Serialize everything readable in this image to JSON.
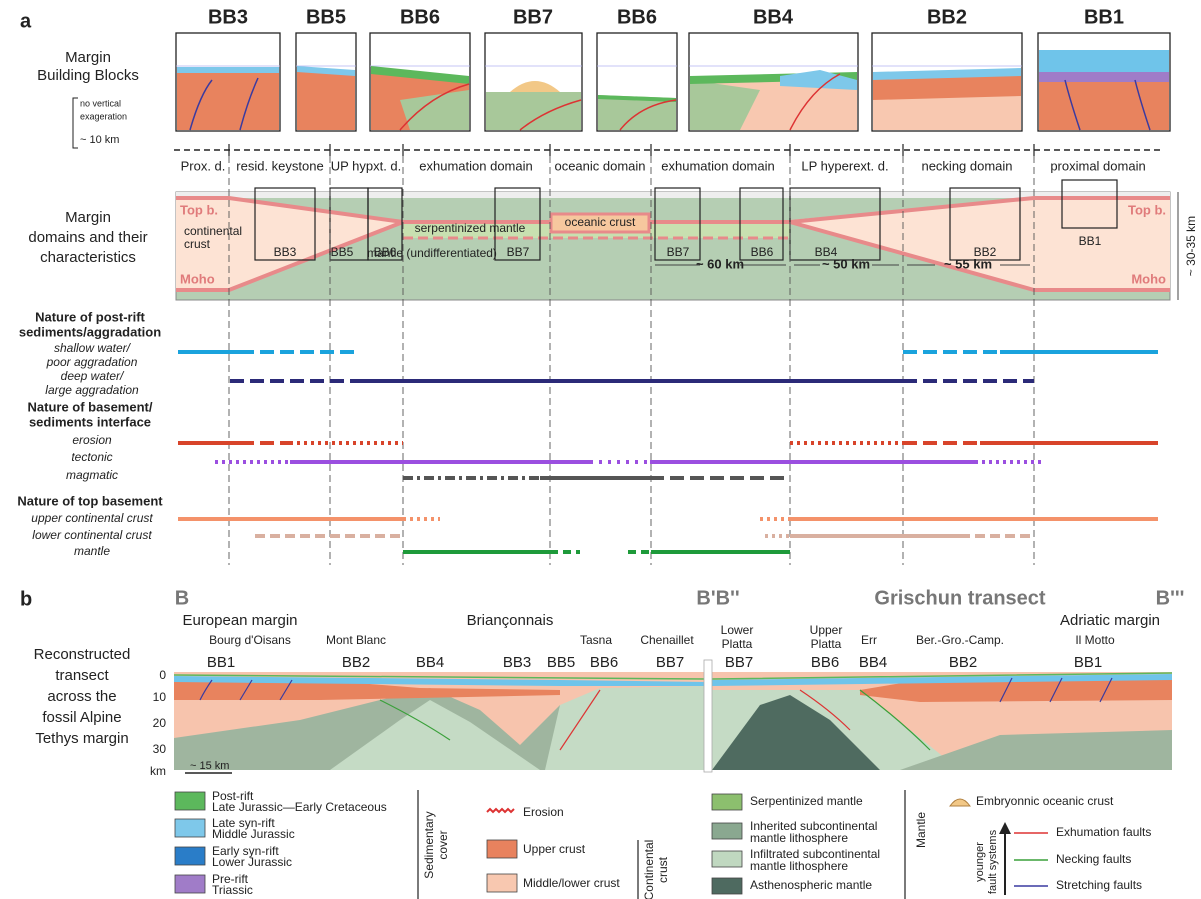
{
  "panel_a": {
    "label": "a",
    "blocks": [
      "BB3",
      "BB5",
      "BB6",
      "BB7",
      "BB6",
      "BB4",
      "BB2",
      "BB1"
    ],
    "blocks_label": [
      "Margin",
      "Building Blocks"
    ],
    "scale_note": [
      "no vertical",
      "exageration"
    ],
    "scale": "~ 10 km",
    "domains": [
      "Prox. d.",
      "resid. keystone",
      "UP hypxt. d.",
      "exhumation domain",
      "oceanic domain",
      "exhumation domain",
      "LP hyperext. d.",
      "necking domain",
      "proximal domain"
    ],
    "domains_label": [
      "Margin",
      "domains and their",
      "characteristics"
    ],
    "section_labels": {
      "top_left": "Top b.",
      "top_right": "Top b.",
      "moho_left": "Moho",
      "moho_right": "Moho",
      "continental_crust": [
        "continental",
        "crust"
      ],
      "serpentinized_mantle": "serpentinized mantle",
      "oceanic_crust": "oceanic crust",
      "mantle": "mantle (undifferentiated)"
    },
    "boxes": [
      "BB3",
      "BB5",
      "BB6",
      "BB7",
      "BB7",
      "BB6",
      "BB4",
      "BB2",
      "BB1"
    ],
    "distances": [
      "~ 60 km",
      "~ 50 km",
      "~ 55 km"
    ],
    "thickness": "~ 30-35 km",
    "rows": [
      {
        "heading": [
          "Nature of post-rift",
          "sediments/aggradation"
        ],
        "items": [
          [
            "shallow water/",
            "poor aggradation"
          ],
          [
            "deep water/",
            "large aggradation"
          ]
        ]
      },
      {
        "heading": [
          "Nature of basement/",
          "sediments interface"
        ],
        "items": [
          [
            "erosion"
          ],
          [
            "tectonic"
          ],
          [
            "magmatic"
          ]
        ]
      },
      {
        "heading": [
          "Nature of top basement"
        ],
        "items": [
          [
            "upper continental crust"
          ],
          [
            "lower continental crust"
          ],
          [
            "mantle"
          ]
        ]
      }
    ]
  },
  "panel_b": {
    "label": "b",
    "section_ends": [
      "B",
      "B'B''",
      "B'''"
    ],
    "transect": "Grischun transect",
    "margins": [
      "European margin",
      "Briançonnais",
      "Adriatic margin"
    ],
    "locations": [
      [
        "Bourg d'Oisans"
      ],
      [
        "Mont Blanc"
      ],
      [
        "Tasna"
      ],
      [
        "Chenaillet"
      ],
      [
        "Lower",
        "Platta"
      ],
      [
        "Upper",
        "Platta"
      ],
      [
        "Err"
      ],
      [
        "Ber.-Gro.-Camp."
      ],
      [
        "Il Motto"
      ]
    ],
    "blocks": [
      "BB1",
      "BB2",
      "BB4",
      "BB3",
      "BB5",
      "BB6",
      "BB7",
      "BB7",
      "BB6",
      "BB4",
      "BB2",
      "BB1"
    ],
    "depth_labels": [
      "0",
      "10",
      "20",
      "30",
      "km"
    ],
    "scale": "~ 15 km",
    "side_label": [
      "Reconstructed",
      "transect",
      "across the",
      "fossil Alpine",
      "Tethys margin"
    ]
  },
  "legend": {
    "sediments": [
      [
        "Post-rift",
        "Late Jurassic—Early Cretaceous"
      ],
      [
        "Late syn-rift",
        "Middle Jurassic"
      ],
      [
        "Early syn-rift",
        "Lower Jurassic"
      ],
      [
        "Pre-rift",
        "Triassic"
      ]
    ],
    "sediments_group": [
      "Sedimentary",
      "cover"
    ],
    "crust": [
      "Erosion",
      "Upper crust",
      "Middle/lower crust"
    ],
    "crust_group": [
      "Continental",
      "crust"
    ],
    "mantle": [
      [
        "Serpentinized mantle"
      ],
      [
        "Inherited subcontinental",
        "mantle lithosphere"
      ],
      [
        "Infiltrated subcontinental",
        "mantle lithosphere"
      ],
      [
        "Asthenospheric mantle"
      ]
    ],
    "mantle_group": "Mantle",
    "oceanic": "Embryonnic oceanic crust",
    "faults_group": [
      "younger",
      "fault systems"
    ],
    "faults": [
      "Exhumation faults",
      "Necking faults",
      "Stretching faults"
    ]
  }
}
